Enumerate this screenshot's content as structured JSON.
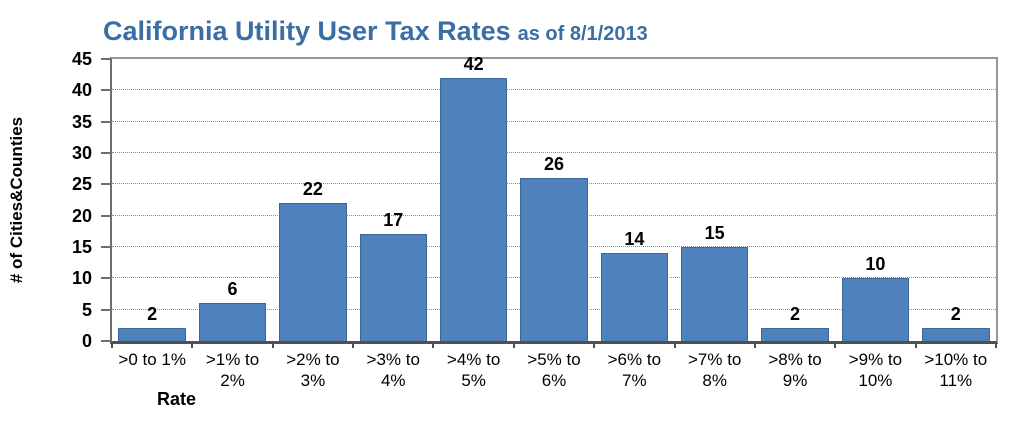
{
  "title": {
    "main": "California Utility User Tax Rates",
    "suffix": "as of 8/1/2013"
  },
  "colors": {
    "title_text": "#3A6EA5",
    "bar_fill": "#4F81BD",
    "bar_border": "#3E689A",
    "gridline": "#8F8F8F",
    "plot_border": "#969696",
    "axis_line": "#4F4F4F",
    "text": "#000000"
  },
  "chart_data": {
    "type": "bar",
    "title": "California Utility User Tax Rates",
    "subtitle": "as of 8/1/2013",
    "categories": [
      ">0 to 1%",
      ">1% to 2%",
      ">2% to 3%",
      ">3% to 4%",
      ">4% to 5%",
      ">5% to 6%",
      ">6% to 7%",
      ">7% to 8%",
      ">8% to 9%",
      ">9% to 10%",
      ">10% to 11%"
    ],
    "values": [
      2,
      6,
      22,
      17,
      42,
      26,
      14,
      15,
      2,
      10,
      2
    ],
    "xlabel": "Rate",
    "ylabel": "# of Cities&Counties",
    "ylim": [
      0,
      45
    ],
    "yticks": [
      0,
      5,
      10,
      15,
      20,
      25,
      30,
      35,
      40,
      45
    ],
    "grid": "horizontal-dotted",
    "legend": "none",
    "data_labels": true
  }
}
